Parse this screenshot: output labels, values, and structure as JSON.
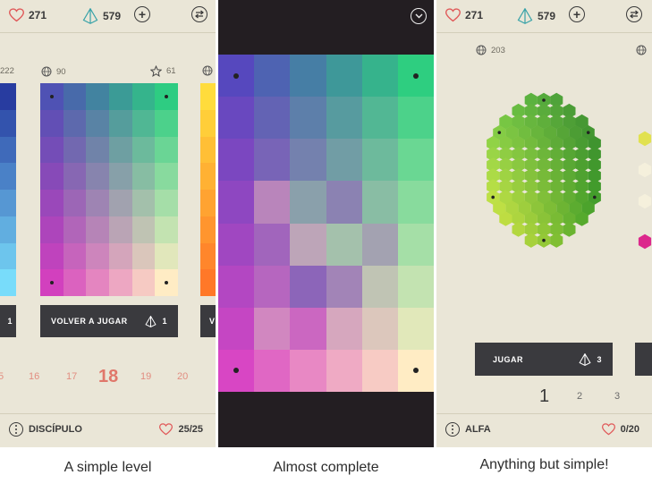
{
  "panels": [
    {
      "top": {
        "hearts": "271",
        "gems": "579"
      },
      "card": {
        "plays": "90",
        "stars": "61"
      },
      "left_card_count": "222",
      "button": {
        "label": "VOLVER A JUGAR",
        "cost": "1"
      },
      "left_button_fragment": "1",
      "right_button_fragment": "V",
      "levels": [
        "5",
        "16",
        "17",
        "18",
        "19",
        "20"
      ],
      "current_level": "18",
      "bottom": {
        "rank": "DISCÍPULO",
        "lives": "25/25"
      },
      "caption": "A simple level"
    },
    {
      "caption": "Almost complete"
    },
    {
      "top": {
        "hearts": "271",
        "gems": "579"
      },
      "card": {
        "plays": "203"
      },
      "button": {
        "label": "JUGAR",
        "cost": "3"
      },
      "pages": [
        "1",
        "2",
        "3"
      ],
      "current_page": "1",
      "bottom": {
        "rank": "ALFA",
        "lives": "0/20"
      },
      "caption": "Anything but simple!"
    }
  ],
  "icons": [
    "heart-icon",
    "pyramid-icon",
    "plus-icon",
    "swap-icon",
    "globe-icon",
    "star-icon",
    "dots-icon",
    "chevron-down-icon"
  ],
  "colors": {
    "background": "#eae6d7",
    "dark_panel": "#231e22",
    "button": "#3a3a3e",
    "accent_red": "#e05a5a",
    "gem_teal": "#36a2a8",
    "level_salmon": "#e28d80"
  }
}
